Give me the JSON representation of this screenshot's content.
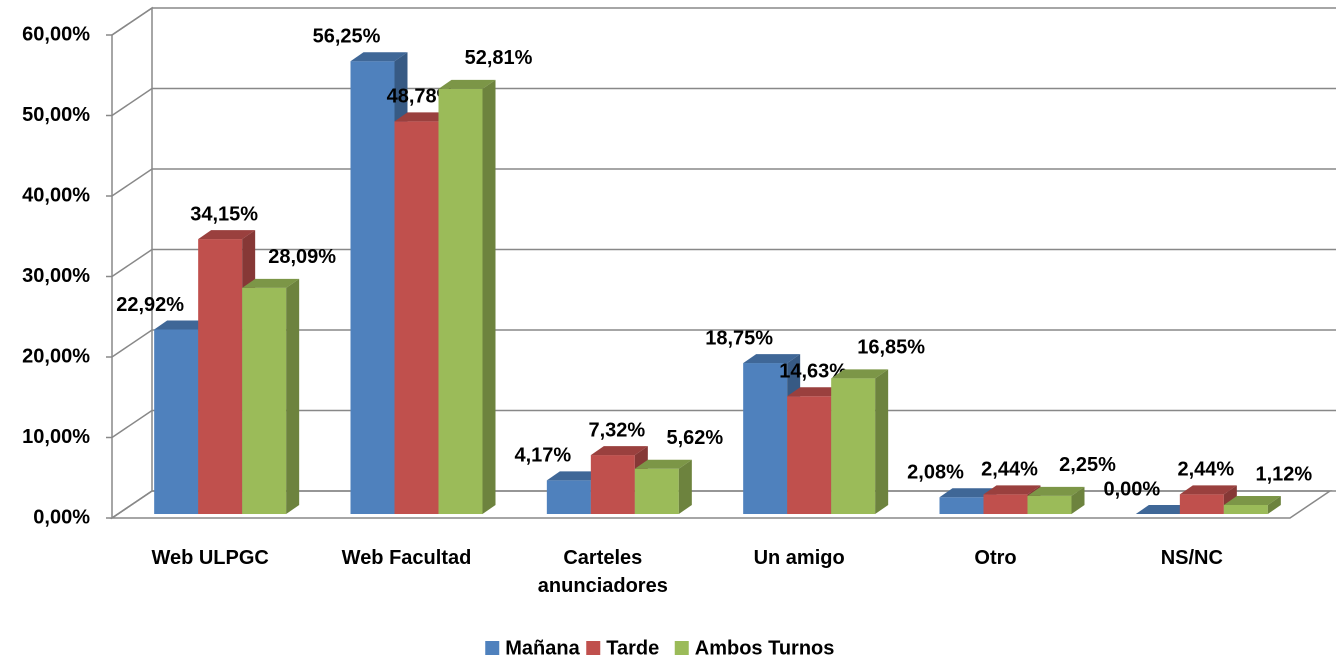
{
  "chart_data": {
    "type": "bar",
    "categories": [
      "Web ULPGC",
      "Web Facultad",
      "Carteles anunciadores",
      "Un amigo",
      "Otro",
      "NS/NC"
    ],
    "series": [
      {
        "name": "Mañana",
        "color": "#4f81bd",
        "values": [
          22.92,
          56.25,
          4.17,
          18.75,
          2.08,
          0
        ],
        "value_labels": [
          "22,92%",
          "56,25%",
          "4,17%",
          "18,75%",
          "2,08%",
          "0,00%"
        ]
      },
      {
        "name": "Tarde",
        "color": "#c0504d",
        "values": [
          34.15,
          48.78,
          7.32,
          14.63,
          2.44,
          2.44
        ],
        "value_labels": [
          "34,15%",
          "48,78%",
          "7,32%",
          "14,63%",
          "2,44%",
          "2,44%"
        ]
      },
      {
        "name": "Ambos Turnos",
        "color": "#9bbb59",
        "values": [
          28.09,
          52.81,
          5.62,
          16.85,
          2.25,
          1.12
        ],
        "value_labels": [
          "28,09%",
          "52,81%",
          "5,62%",
          "16,85%",
          "2,25%",
          "1,12%"
        ]
      }
    ],
    "ylim": [
      0,
      60
    ],
    "yticks": [
      {
        "value": 0,
        "label": "0,00%"
      },
      {
        "value": 10,
        "label": "10,00%"
      },
      {
        "value": 20,
        "label": "20,00%"
      },
      {
        "value": 30,
        "label": "30,00%"
      },
      {
        "value": 40,
        "label": "40,00%"
      },
      {
        "value": 50,
        "label": "50,00%"
      },
      {
        "value": 60,
        "label": "60,00%"
      }
    ],
    "grid": true,
    "legend": "bottom"
  }
}
